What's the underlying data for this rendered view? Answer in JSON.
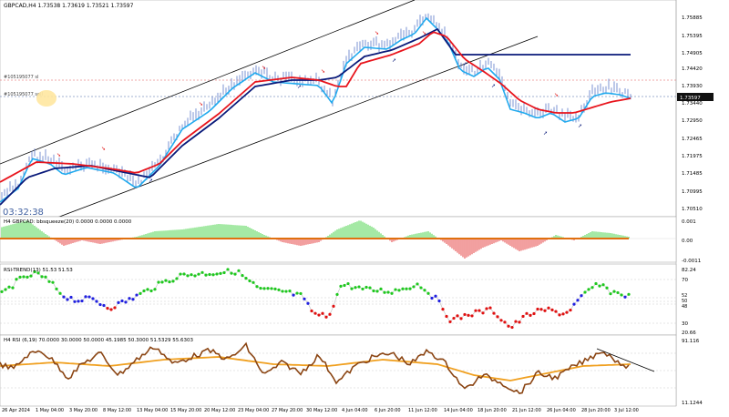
{
  "main_panel": {
    "title": "GBPCAD,H4  1.73538 1.73619 1.73521 1.73597",
    "timer": "03:32:38",
    "level_label_1": "#105195077 sl",
    "level_label_2": "#105195077 sell",
    "price_ticks": [
      "1.75885",
      "1.75395",
      "1.74905",
      "1.74420",
      "1.73930",
      "1.73440",
      "1.72950",
      "1.72465",
      "1.71975",
      "1.71485",
      "1.70995",
      "1.70510"
    ],
    "current_price": "1.73597"
  },
  "squeeze_panel": {
    "title": "H4 GBPCAD: bbsqueeze(20) 0.0000 0.0000 0.0000",
    "ticks": [
      "0.001",
      "0.00",
      "-0.0011"
    ]
  },
  "rsi_trend_panel": {
    "title": "RSI-TREND(13) 51.53 51.53",
    "ticks": [
      "82.24",
      "70",
      "52",
      "50",
      "48",
      "30",
      "20.66"
    ]
  },
  "rsi_panel": {
    "title": "H4 RSI  (6,19) 70.0000 30.0000 50.0000 45.1985 50.3000 51.5329 55.6303",
    "ticks": [
      "91.116",
      "11.1244"
    ]
  },
  "time_axis": {
    "labels": [
      "26 Apr 2024",
      "1 May 04:00",
      "3 May 20:00",
      "8 May 12:00",
      "13 May 04:00",
      "15 May 20:00",
      "20 May 12:00",
      "23 May 04:00",
      "27 May 20:00",
      "30 May 12:00",
      "4 Jun 04:00",
      "6 Jun 20:00",
      "11 Jun 12:00",
      "14 Jun 04:00",
      "18 Jun 20:00",
      "21 Jun 12:00",
      "26 Jun 04:00",
      "28 Jun 20:00",
      "3 Jul 12:00"
    ]
  },
  "colors": {
    "red_ma": "#e8141c",
    "navy_ma": "#0a1a7a",
    "blue_ma": "#22aaee",
    "candle": "#5a78c8",
    "green": "#1ec81e",
    "red": "#e01010",
    "blue": "#2020e0",
    "brown": "#8b4513",
    "orange": "#f0a020",
    "orange_bar": "#e07010"
  }
}
